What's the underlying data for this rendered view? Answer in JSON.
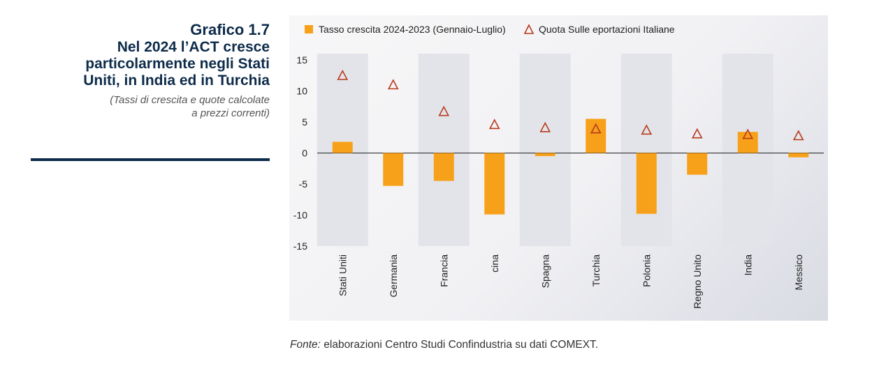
{
  "header": {
    "chart_number": "Grafico 1.7",
    "title": "Nel 2024 l’ACT cresce\nparticolarmente negli Stati\nUniti, in India ed in Turchia",
    "subtitle": "(Tassi di crescita e quote calcolate\na prezzi correnti)"
  },
  "footer": {
    "source_label": "Fonte:",
    "source_text": " elaborazioni Centro Studi Confindustria su dati COMEXT."
  },
  "colors": {
    "bar": "#f7a11a",
    "marker": "#b83a1e",
    "band": "#e3e4e9",
    "title": "#0d2b4a"
  },
  "chart_data": {
    "type": "bar",
    "categories": [
      "Stati  Uniti",
      "Germania",
      "Francia",
      "cina",
      "Spagna",
      "Turchia",
      "Polonia",
      "Regno Unito",
      "India",
      "Messico"
    ],
    "series": [
      {
        "name": "Tasso crescita 2024-2023 (Gennaio-Luglio)",
        "type": "bar",
        "values": [
          1.8,
          -5.3,
          -4.5,
          -9.9,
          -0.5,
          5.5,
          -9.8,
          -3.5,
          3.4,
          -0.7
        ]
      },
      {
        "name": "Quota Sulle eportazioni Italiane",
        "type": "marker-triangle",
        "values": [
          12.5,
          11.0,
          6.7,
          4.6,
          4.1,
          3.9,
          3.7,
          3.1,
          3.0,
          2.8
        ]
      }
    ],
    "ylim": [
      -15,
      16
    ],
    "yticks": [
      15,
      10,
      5,
      0,
      -5,
      -10,
      -15
    ],
    "legend_position": "top",
    "alternating_bands": true
  }
}
